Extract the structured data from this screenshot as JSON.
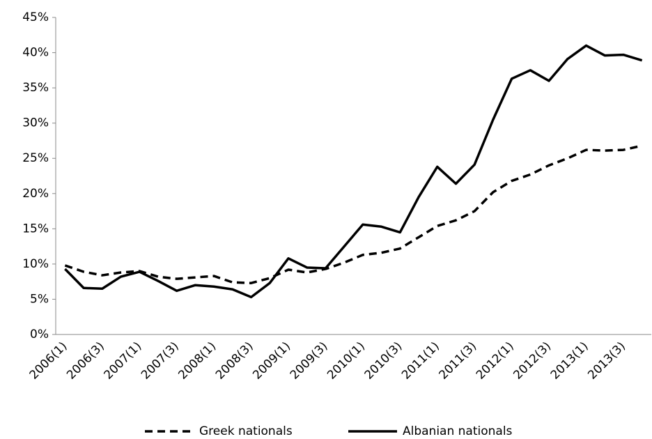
{
  "chart_data": {
    "type": "line",
    "categories": [
      "2006(1)",
      null,
      "2006(3)",
      null,
      "2007(1)",
      null,
      "2007(3)",
      null,
      "2008(1)",
      null,
      "2008(3)",
      null,
      "2009(1)",
      null,
      "2009(3)",
      null,
      "2010(1)",
      null,
      "2010(3)",
      null,
      "2011(1)",
      null,
      "2011(3)",
      null,
      "2012(1)",
      null,
      "2012(3)",
      null,
      "2013(1)",
      null,
      "2013(3)",
      null
    ],
    "series": [
      {
        "name": "Greek nationals",
        "color": "#000000",
        "dash": true,
        "values": [
          9.8,
          8.9,
          8.4,
          8.8,
          9.0,
          8.2,
          7.9,
          8.1,
          8.3,
          7.4,
          7.3,
          8.0,
          9.2,
          8.8,
          9.3,
          10.2,
          11.3,
          11.6,
          12.2,
          13.8,
          15.4,
          16.2,
          17.5,
          20.2,
          21.8,
          22.7,
          24.0,
          25.0,
          26.2,
          26.1,
          26.2,
          26.8
        ]
      },
      {
        "name": "Albanian nationals",
        "color": "#000000",
        "dash": false,
        "values": [
          9.3,
          6.6,
          6.5,
          8.2,
          8.9,
          7.6,
          6.2,
          7.0,
          6.8,
          6.4,
          5.3,
          7.3,
          10.8,
          9.5,
          9.4,
          12.5,
          15.6,
          15.3,
          14.5,
          19.5,
          23.8,
          21.4,
          24.1,
          30.5,
          36.3,
          37.5,
          36.0,
          39.1,
          41.0,
          39.6,
          39.7,
          38.9
        ]
      }
    ],
    "ylim": [
      0,
      45
    ],
    "yticks": [
      {
        "value": 0,
        "label": "0%"
      },
      {
        "value": 5,
        "label": "5%"
      },
      {
        "value": 10,
        "label": "10%"
      },
      {
        "value": 15,
        "label": "15%"
      },
      {
        "value": 20,
        "label": "20%"
      },
      {
        "value": 25,
        "label": "25%"
      },
      {
        "value": 30,
        "label": "30%"
      },
      {
        "value": 35,
        "label": "35%"
      },
      {
        "value": 40,
        "label": "40%"
      },
      {
        "value": 45,
        "label": "45%"
      }
    ],
    "grid": false,
    "legend": "bottom"
  }
}
